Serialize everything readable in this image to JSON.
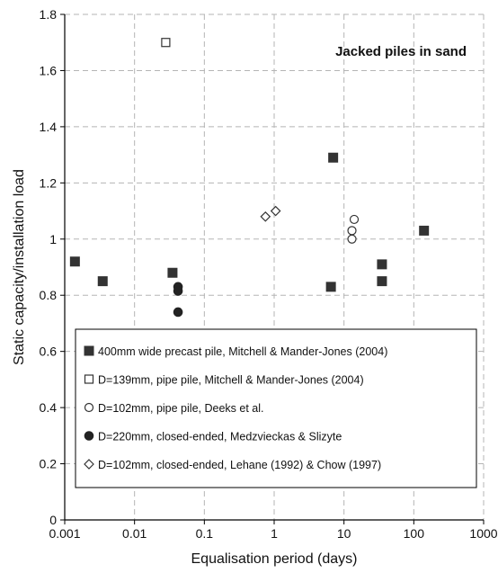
{
  "chart_data": {
    "type": "scatter",
    "xscale": "log",
    "xlabel": "Equalisation period (days)",
    "ylabel": "Static capacity/installation load",
    "xlim": [
      0.001,
      1000
    ],
    "ylim": [
      0,
      1.8
    ],
    "xticks": [
      "0.001",
      "0.01",
      "0.1",
      "1",
      "10",
      "100",
      "1000"
    ],
    "yticks": [
      "0",
      "0.2",
      "0.4",
      "0.6",
      "0.8",
      "1",
      "1.2",
      "1.4",
      "1.6",
      "1.8"
    ],
    "grid": true,
    "legend_position": "bottom",
    "annotation": "Jacked piles in sand",
    "series": [
      {
        "name": "400mm wide precast pile, Mitchell & Mander-Jones (2004)",
        "marker": "filled-square",
        "color": "#333333",
        "points": [
          [
            0.0014,
            0.92
          ],
          [
            0.0035,
            0.85
          ],
          [
            0.035,
            0.88
          ],
          [
            7,
            1.29
          ],
          [
            6.5,
            0.83
          ],
          [
            35,
            0.91
          ],
          [
            35,
            0.85
          ],
          [
            140,
            1.03
          ]
        ]
      },
      {
        "name": "D=139mm, pipe pile, Mitchell & Mander-Jones (2004)",
        "marker": "open-square",
        "color": "#333333",
        "points": [
          [
            0.028,
            1.7
          ]
        ]
      },
      {
        "name": "D=102mm, pipe pile, Deeks et al.",
        "marker": "open-circle",
        "color": "#333333",
        "points": [
          [
            13,
            1.0
          ],
          [
            13,
            1.03
          ],
          [
            14,
            1.07
          ]
        ]
      },
      {
        "name": "D=220mm, closed-ended, Medzvieckas & Slizyte",
        "marker": "filled-circle",
        "color": "#222222",
        "points": [
          [
            0.042,
            0.83
          ],
          [
            0.042,
            0.815
          ],
          [
            0.042,
            0.74
          ]
        ]
      },
      {
        "name": "D=102mm, closed-ended, Lehane (1992) & Chow (1997)",
        "marker": "open-diamond",
        "color": "#333333",
        "points": [
          [
            0.75,
            1.08
          ],
          [
            1.05,
            1.1
          ]
        ]
      }
    ]
  }
}
